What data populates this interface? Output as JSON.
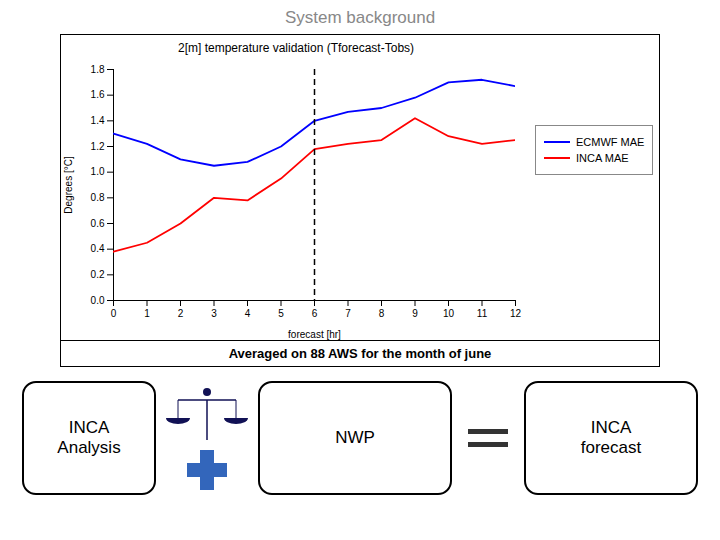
{
  "chart_data": {
    "type": "line",
    "title": "System background",
    "subtitle": "2[m] temperature validation (Tforecast-Tobs)",
    "caption": "Averaged on 88 AWS for the month of june",
    "xlabel": "forecast [hr]",
    "ylabel": "Degrees [°C]",
    "x": [
      0,
      1,
      2,
      3,
      4,
      5,
      6,
      7,
      8,
      9,
      10,
      11,
      12
    ],
    "series": [
      {
        "name": "ECMWF MAE",
        "color": "blue",
        "values": [
          1.3,
          1.22,
          1.1,
          1.05,
          1.08,
          1.2,
          1.4,
          1.47,
          1.5,
          1.58,
          1.7,
          1.72,
          1.67
        ]
      },
      {
        "name": "INCA MAE",
        "color": "red",
        "values": [
          0.38,
          0.45,
          0.6,
          0.8,
          0.78,
          0.95,
          1.18,
          1.22,
          1.25,
          1.42,
          1.28,
          1.22,
          1.25
        ]
      }
    ],
    "vlines": [
      {
        "x": 6,
        "line_style": "dashed"
      }
    ],
    "xlim": [
      0,
      12
    ],
    "xticks": [
      0,
      1,
      2,
      3,
      4,
      5,
      6,
      7,
      8,
      9,
      10,
      11,
      12
    ],
    "ylim": [
      0,
      1.8
    ],
    "yticks": [
      {
        "value": 0,
        "label": "0.0"
      },
      0.2,
      0.4,
      0.6,
      0.8,
      {
        "value": 1.0,
        "label": "1.0"
      },
      1.2,
      1.4,
      1.6,
      1.8
    ],
    "grid": false,
    "legend": "right",
    "annotations": [
      "INCA\nAnalysis",
      "NWP",
      "INCA\nforecast"
    ]
  }
}
